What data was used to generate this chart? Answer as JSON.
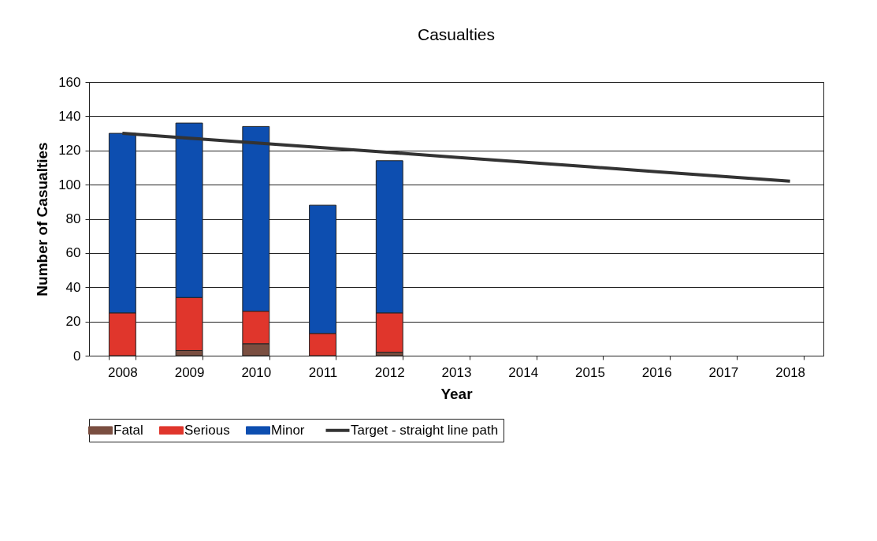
{
  "chart_data": {
    "type": "bar",
    "title": "Casualties",
    "xlabel": "Year",
    "ylabel": "Number of Casualties",
    "categories": [
      "2008",
      "2009",
      "2010",
      "2011",
      "2012",
      "2013",
      "2014",
      "2015",
      "2016",
      "2017",
      "2018"
    ],
    "stacked": true,
    "ylim": [
      0,
      160
    ],
    "yticks": [
      0,
      20,
      40,
      60,
      80,
      100,
      120,
      140,
      160
    ],
    "grid": "y",
    "legend": "bottom",
    "series": [
      {
        "name": "Fatal",
        "color": "#7a4e40",
        "values": [
          0,
          3,
          7,
          0,
          2,
          null,
          null,
          null,
          null,
          null,
          null
        ]
      },
      {
        "name": "Serious",
        "color": "#e0362c",
        "values": [
          25,
          31,
          19,
          13,
          23,
          null,
          null,
          null,
          null,
          null,
          null
        ]
      },
      {
        "name": "Minor",
        "color": "#0d4eb0",
        "values": [
          105,
          102,
          108,
          75,
          89,
          null,
          null,
          null,
          null,
          null,
          null
        ]
      },
      {
        "name": "Target - straight line path",
        "type": "line",
        "color": "#333333",
        "values": [
          130,
          127.2,
          124.4,
          121.6,
          118.8,
          116,
          113.2,
          110.4,
          107.6,
          104.8,
          102
        ]
      }
    ]
  }
}
